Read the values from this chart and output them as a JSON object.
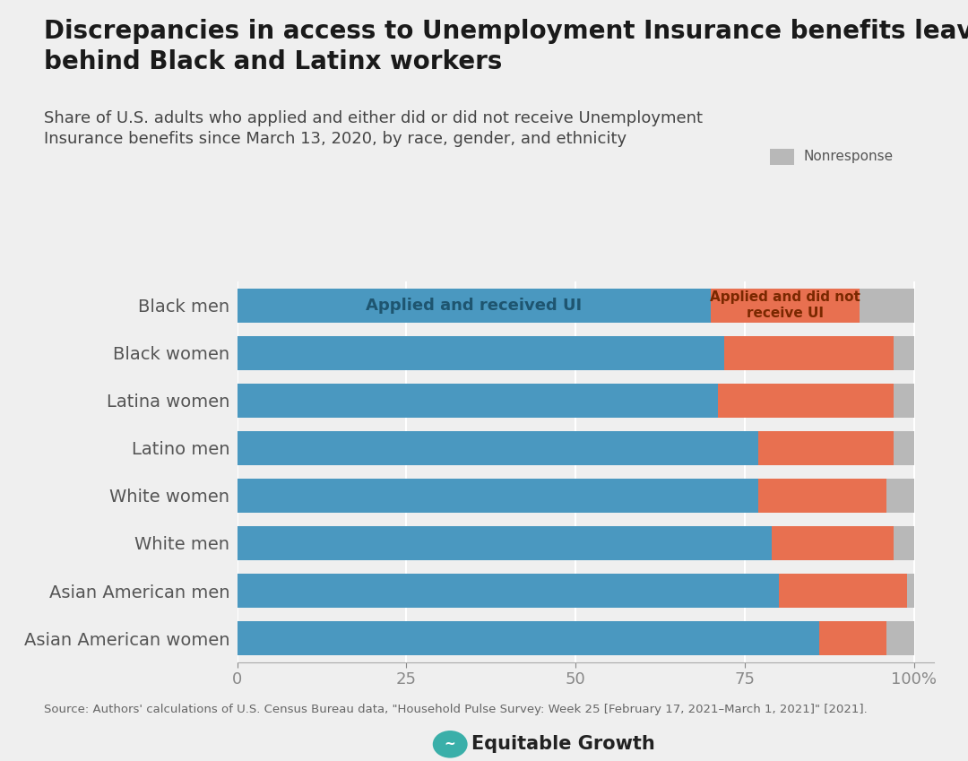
{
  "title": "Discrepancies in access to Unemployment Insurance benefits leave\nbehind Black and Latinx workers",
  "subtitle": "Share of U.S. adults who applied and either did or did not receive Unemployment\nInsurance benefits since March 13, 2020, by race, gender, and ethnicity",
  "categories": [
    "Black men",
    "Black women",
    "Latina women",
    "Latino men",
    "White women",
    "White men",
    "Asian American men",
    "Asian American women"
  ],
  "received": [
    70,
    72,
    71,
    77,
    77,
    79,
    80,
    86
  ],
  "not_received": [
    22,
    25,
    26,
    20,
    19,
    18,
    19,
    10
  ],
  "nonresponse": [
    8,
    3,
    3,
    3,
    4,
    3,
    1,
    4
  ],
  "color_received": "#4a98c0",
  "color_not_received": "#e87050",
  "color_nonresponse": "#b8b8b8",
  "background_color": "#efefef",
  "source_text": "Source: Authors' calculations of U.S. Census Bureau data, \"Household Pulse Survey: Week 25 [February 17, 2021–March 1, 2021]\" [2021].",
  "label_received": "Applied and received UI",
  "label_not_received": "Applied and did not\nreceive UI",
  "label_nonresponse": "Nonresponse",
  "title_fontsize": 20,
  "subtitle_fontsize": 13,
  "tick_fontsize": 13,
  "ylabel_fontsize": 14
}
